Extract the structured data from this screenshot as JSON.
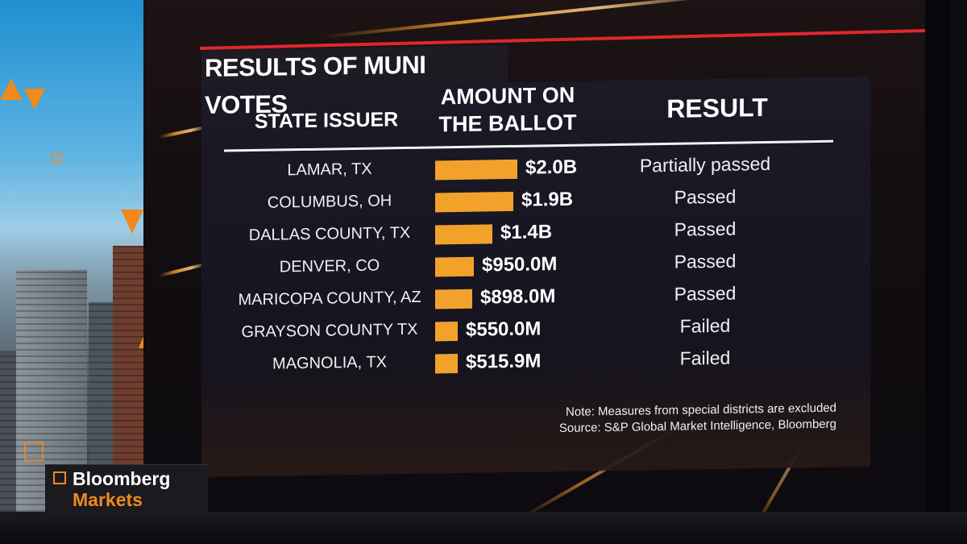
{
  "brand": {
    "line1": "Bloomberg",
    "line2": "Markets"
  },
  "chart_data": {
    "type": "table",
    "title": "RESULTS OF MUNI VOTES",
    "columns": [
      "STATE ISSUER",
      "AMOUNT ON THE BALLOT",
      "RESULT"
    ],
    "amount_header_lines": [
      "AMOUNT ON",
      "THE BALLOT"
    ],
    "categories": [
      "LAMAR, TX",
      "COLUMBUS, OH",
      "DALLAS COUNTY, TX",
      "DENVER, CO",
      "MARICOPA COUNTY, AZ",
      "GRAYSON COUNTY TX",
      "MAGNOLIA, TX"
    ],
    "values": [
      2000,
      1900,
      1400,
      950,
      898,
      550,
      515.9
    ],
    "value_unit": "$M",
    "value_labels": [
      "$2.0B",
      "$1.9B",
      "$1.4B",
      "$950.0M",
      "$898.0M",
      "$550.0M",
      "$515.9M"
    ],
    "results": [
      "Partially passed",
      "Passed",
      "Passed",
      "Passed",
      "Passed",
      "Failed",
      "Failed"
    ],
    "bar_color": "#F2A22B",
    "notes": [
      "Note: Measures from special districts are excluded",
      "Source: S&P Global Market Intelligence, Bloomberg"
    ]
  }
}
